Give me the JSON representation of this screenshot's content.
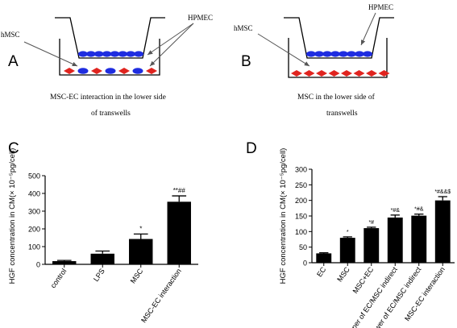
{
  "panels": {
    "A": {
      "letter": "A",
      "label_left": "hMSC",
      "label_right": "HPMEC",
      "caption_line1": "MSC-EC  interaction in the lower side",
      "caption_line2": "of transwells"
    },
    "B": {
      "letter": "B",
      "label_left": "hMSC",
      "label_right": "HPMEC",
      "caption_line1": "MSC    in the lower side of",
      "caption_line2": "transwells"
    }
  },
  "colors": {
    "bar": "#000000",
    "ec_cell": "#1f2de0",
    "msc_cell": "#e0241f",
    "background": "#ffffff"
  },
  "chart_data": [
    {
      "panel": "C",
      "type": "bar",
      "ylabel": "HGF concentration in CM(× 10⁻⁵pg/cell)",
      "categories": [
        "control",
        "LPS",
        "MSC",
        "MSC-EC interaction"
      ],
      "values": [
        18,
        60,
        143,
        353
      ],
      "errors": [
        4,
        15,
        28,
        33
      ],
      "annotations": [
        "",
        "",
        "*",
        "**##"
      ],
      "ylim": [
        0,
        500
      ],
      "yticks": [
        0,
        100,
        200,
        300,
        400,
        500
      ],
      "grid": false
    },
    {
      "panel": "D",
      "type": "bar",
      "ylabel": "HGF concentration in CM(× 10⁻⁵pg/cell)",
      "categories": [
        "EC",
        "MSC",
        "MSC+EC",
        "Upper of EC/MSC indirect",
        "Lower of EC/MSC indirect",
        "MSC-EC interaction"
      ],
      "values": [
        30,
        80,
        111,
        145,
        151,
        200
      ],
      "errors": [
        2,
        3,
        3,
        8,
        5,
        12
      ],
      "annotations": [
        "",
        "*",
        "*#",
        "*#&",
        "*#&",
        "*#&&$"
      ],
      "ylim": [
        0,
        300
      ],
      "yticks": [
        0,
        50,
        100,
        150,
        200,
        250,
        300
      ],
      "grid": false
    }
  ]
}
